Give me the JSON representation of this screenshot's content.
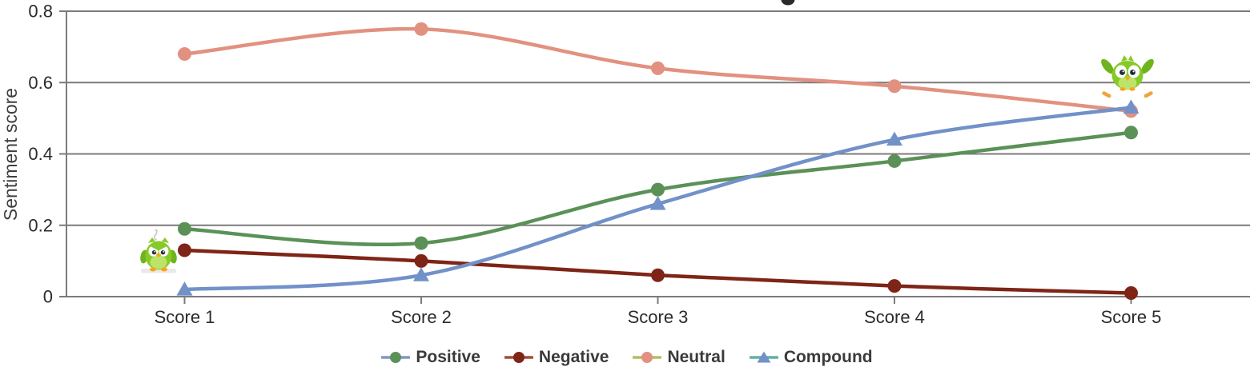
{
  "page": {
    "background": "#ffffff"
  },
  "chart_data": {
    "type": "line",
    "categories": [
      "Score 1",
      "Score 2",
      "Score 3",
      "Score 4",
      "Score 5"
    ],
    "series": [
      {
        "name": "Positive",
        "marker": "circle",
        "color": "#5b9157",
        "legend_line_color": "#7f97c6",
        "values": [
          0.19,
          0.15,
          0.3,
          0.38,
          0.46
        ]
      },
      {
        "name": "Negative",
        "marker": "circle",
        "color": "#7e2517",
        "legend_line_color": "#a34d3c",
        "values": [
          0.13,
          0.1,
          0.06,
          0.03,
          0.01
        ]
      },
      {
        "name": "Neutral",
        "marker": "circle",
        "color": "#e29180",
        "legend_line_color": "#b5bc65",
        "values": [
          0.68,
          0.75,
          0.64,
          0.59,
          0.52
        ]
      },
      {
        "name": "Compound",
        "marker": "triangle",
        "color": "#7191c8",
        "legend_line_color": "#62afa9",
        "values": [
          0.02,
          0.06,
          0.26,
          0.44,
          0.53
        ]
      }
    ],
    "xlabel": "",
    "ylabel": "Sentiment score",
    "ylim": [
      0,
      0.8
    ],
    "yticks": [
      0,
      0.2,
      0.4,
      0.6,
      0.8
    ],
    "ytick_labels": [
      "0",
      "0.2",
      "0.4",
      "0.6",
      "0.8"
    ],
    "grid": true,
    "line_style": "smooth",
    "legend_position": "bottom-center",
    "annotations": [
      {
        "name": "duo-owl-standing",
        "at_category": "Score 1",
        "description": "green owl mascot sticker standing beside the Score 1 data points"
      },
      {
        "name": "duo-owl-flying",
        "at_category": "Score 5",
        "description": "green owl mascot sticker flying above the Score 5 data points"
      },
      {
        "name": "clipped-title-descender",
        "description": "dark descender of a cropped-off chart title glyph at top center"
      }
    ],
    "style": {
      "gridline_color": "#7b7b7b",
      "axis_text_color": "#2b2b2b",
      "legend_text_color": "#3a3a3a",
      "line_width": 4.5
    }
  }
}
